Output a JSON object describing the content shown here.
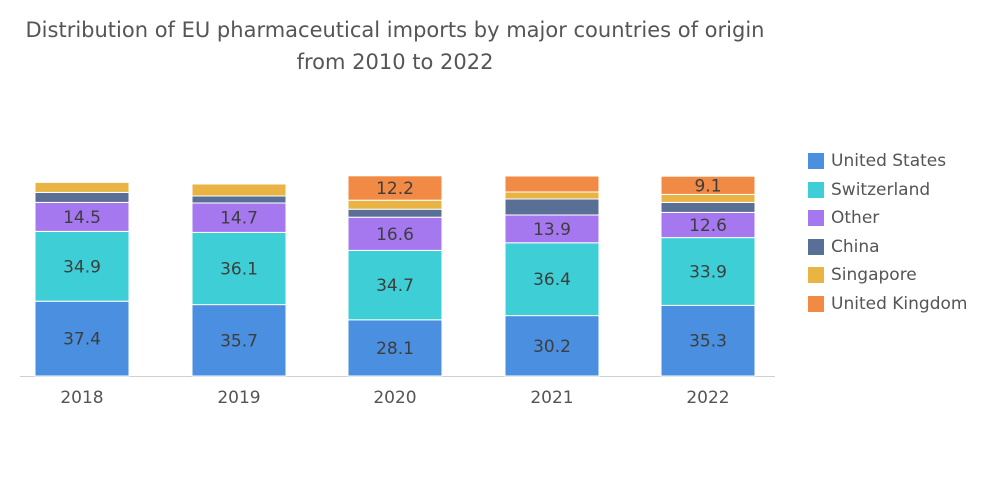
{
  "chart_data": {
    "type": "stacked-bar",
    "title": "Distribution of EU pharmaceutical imports by major countries of origin",
    "subtitle": "from 2010 to 2022",
    "categories": [
      "2018",
      "2019",
      "2020",
      "2021",
      "2022"
    ],
    "series": [
      {
        "name": "United States",
        "color": "#4a8fe0",
        "values": [
          37.4,
          35.7,
          28.1,
          30.2,
          35.3
        ],
        "labels": [
          "37.4",
          "35.7",
          "28.1",
          "30.2",
          "35.3"
        ]
      },
      {
        "name": "Switzerland",
        "color": "#3ecfd6",
        "values": [
          34.9,
          36.1,
          34.7,
          36.4,
          33.9
        ],
        "labels": [
          "34.9",
          "36.1",
          "34.7",
          "36.4",
          "33.9"
        ]
      },
      {
        "name": "Other",
        "color": "#a678f0",
        "values": [
          14.5,
          14.7,
          16.6,
          13.9,
          12.6
        ],
        "labels": [
          "14.5",
          "14.7",
          "16.6",
          "13.9",
          "12.6"
        ]
      },
      {
        "name": "China",
        "color": "#5a6f95",
        "values": [
          5.0,
          3.5,
          4.0,
          8.0,
          5.0
        ],
        "labels": [
          "",
          "",
          "",
          "",
          ""
        ]
      },
      {
        "name": "Singapore",
        "color": "#e9b443",
        "values": [
          5.0,
          6.0,
          4.5,
          3.5,
          4.0
        ],
        "labels": [
          "",
          "",
          "",
          "",
          ""
        ]
      },
      {
        "name": "United Kingdom",
        "color": "#f08a45",
        "values": [
          0,
          0,
          12.2,
          8.0,
          9.1
        ],
        "labels": [
          "",
          "",
          "12.2",
          "",
          "9.1"
        ]
      }
    ],
    "ylim": [
      0,
      100
    ],
    "grid": false,
    "legend": "right"
  }
}
